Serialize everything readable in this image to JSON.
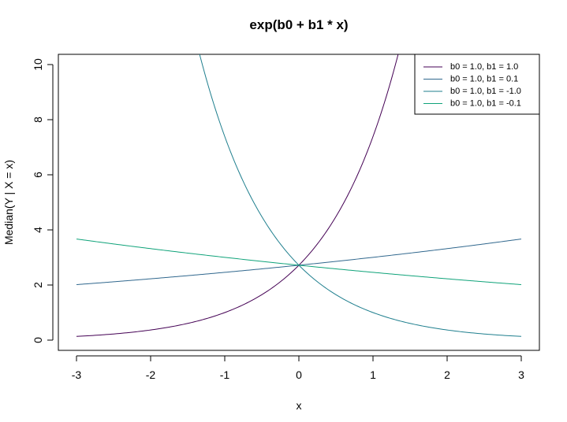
{
  "chart_data": {
    "type": "line",
    "title": "exp(b0 + b1 * x)",
    "xlabel": "x",
    "ylabel": "Median(Y | X = x)",
    "xlim": [
      -3,
      3
    ],
    "ylim": [
      0,
      10
    ],
    "x_ticks": [
      "-3",
      "-2",
      "-1",
      "0",
      "1",
      "2",
      "3"
    ],
    "y_ticks": [
      "0",
      "2",
      "4",
      "6",
      "8",
      "10"
    ],
    "grid": false,
    "legend_position": "top-right",
    "series": [
      {
        "name": "b0 = 1.0, b1 = 1.0",
        "b0": 1.0,
        "b1": 1.0,
        "color": "#440154",
        "x": [
          -3,
          -2.5,
          -2,
          -1.5,
          -1,
          -0.5,
          0,
          0.5,
          1,
          1.3
        ],
        "y": [
          0.135,
          0.223,
          0.368,
          0.607,
          1.0,
          1.649,
          2.718,
          4.482,
          7.389,
          9.974
        ]
      },
      {
        "name": "b0 = 1.0, b1 = 0.1",
        "b0": 1.0,
        "b1": 0.1,
        "color": "#31688E",
        "x": [
          -3,
          -2,
          -1,
          0,
          1,
          2,
          3
        ],
        "y": [
          2.014,
          2.226,
          2.46,
          2.718,
          3.004,
          3.32,
          3.669
        ]
      },
      {
        "name": "b0 = 1.0, b1 = -1.0",
        "b0": 1.0,
        "b1": -1.0,
        "color": "#1F7F8E",
        "x": [
          -1.3,
          -1,
          -0.5,
          0,
          0.5,
          1,
          1.5,
          2,
          2.5,
          3
        ],
        "y": [
          9.974,
          7.389,
          4.482,
          2.718,
          1.649,
          1.0,
          0.607,
          0.368,
          0.223,
          0.135
        ]
      },
      {
        "name": "b0 = 1.0, b1 = -0.1",
        "b0": 1.0,
        "b1": -0.1,
        "color": "#10A37A",
        "x": [
          -3,
          -2,
          -1,
          0,
          1,
          2,
          3
        ],
        "y": [
          3.669,
          3.32,
          3.004,
          2.718,
          2.46,
          2.226,
          2.014
        ]
      }
    ]
  }
}
